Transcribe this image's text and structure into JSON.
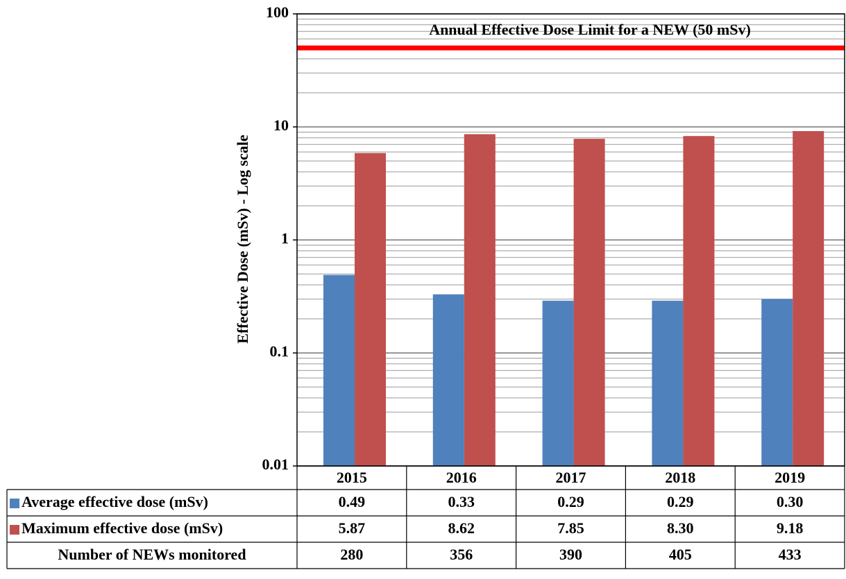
{
  "chart_data": {
    "type": "bar",
    "y_label": "Effective Dose (mSv)  -  Log scale",
    "log_scale": true,
    "grid": true,
    "minor_grid": true,
    "categories": [
      "2015",
      "2016",
      "2017",
      "2018",
      "2019"
    ],
    "series": [
      {
        "name": "Average effective dose (mSv)",
        "color": "#4f81bd",
        "values": [
          0.49,
          0.33,
          0.29,
          0.29,
          0.3
        ],
        "value_labels": [
          "0.49",
          "0.33",
          "0.29",
          "0.29",
          "0.30"
        ]
      },
      {
        "name": "Maximum effective dose (mSv)",
        "color": "#c0504d",
        "values": [
          5.87,
          8.62,
          7.85,
          8.3,
          9.18
        ],
        "value_labels": [
          "5.87",
          "8.62",
          "7.85",
          "8.30",
          "9.18"
        ]
      }
    ],
    "table_rows": [
      {
        "name": "Number of NEWs monitored",
        "values": [
          280,
          356,
          390,
          405,
          433
        ]
      }
    ],
    "reference_line": {
      "value": 50,
      "label": "Annual Effective Dose Limit  for a NEW (50 mSv)",
      "color": "#ff0000"
    },
    "ylim": [
      0.01,
      100
    ],
    "yticks": [
      0.01,
      0.1,
      1,
      10,
      100
    ]
  }
}
